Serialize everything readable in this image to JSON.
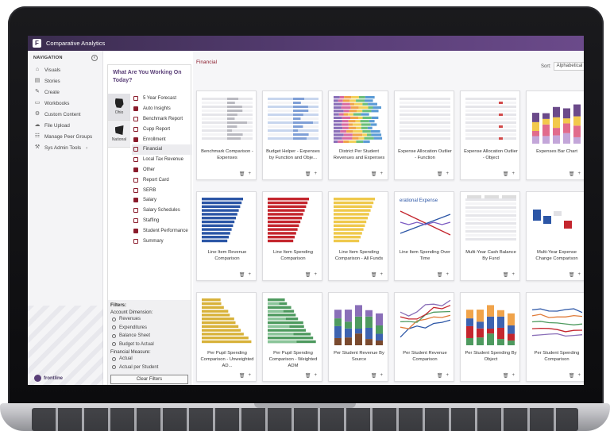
{
  "app": {
    "title": "Comparative Analytics",
    "logo_glyph": "F"
  },
  "sidebar": {
    "heading": "NAVIGATION",
    "items": [
      {
        "label": "Visuals",
        "icon": "house-icon"
      },
      {
        "label": "Stories",
        "icon": "book-icon"
      },
      {
        "label": "Create",
        "icon": "pencil-icon"
      },
      {
        "label": "Workbooks",
        "icon": "folder-icon"
      },
      {
        "label": "Custom Content",
        "icon": "gear-icon"
      },
      {
        "label": "File Upload",
        "icon": "cloud-upload-icon"
      },
      {
        "label": "Manage Peer Groups",
        "icon": "group-icon"
      },
      {
        "label": "Sys Admin Tools",
        "icon": "wrench-icon",
        "expandable": true
      }
    ],
    "brand": "frontline"
  },
  "panel": {
    "title": "What Are You Working On Today?",
    "states": [
      {
        "label": "Ohio"
      },
      {
        "label": "National"
      }
    ],
    "categories": [
      "5 Year Forecast",
      "Auto Insights",
      "Benchmark Report",
      "Cupp Report",
      "Enrollment",
      "Financial",
      "Local Tax Revenue",
      "Other",
      "Report Card",
      "SERB",
      "Salary",
      "Salary Schedules",
      "Staffing",
      "Student Performance",
      "Summary"
    ],
    "selected_category": "Financial",
    "filters": {
      "heading": "Filters:",
      "account_dimension_label": "Account Dimension:",
      "account_dimension_options": [
        "Revenues",
        "Expenditures",
        "Balance Sheet",
        "Budget to Actual"
      ],
      "financial_measure_label": "Financial Measure:",
      "financial_measure_options": [
        "Actual",
        "Actual per Student"
      ],
      "clear_label": "Clear Filters"
    }
  },
  "main": {
    "breadcrumb": "Financial",
    "sort_label": "Sort:",
    "sort_value": "Alphabetical",
    "cards": [
      {
        "caption": "Benchmark Comparison - Expenses",
        "thumb": "table-gray"
      },
      {
        "caption": "Budget Helper - Expenses by Function and Obje...",
        "thumb": "table-blue"
      },
      {
        "caption": "District Per Student Revenues and Expenses",
        "thumb": "stacked-hbar"
      },
      {
        "caption": "Expense Allocation Outlier - Function",
        "thumb": "table-plain"
      },
      {
        "caption": "Expense Allocation Outlier - Object",
        "thumb": "table-plain-red"
      },
      {
        "caption": "Expenses Bar Chart",
        "thumb": "stacked-vbar"
      },
      {
        "caption": "Line Item Revenue Comparison",
        "thumb": "hbar-blue"
      },
      {
        "caption": "Line Item Spending Comparison",
        "thumb": "hbar-red"
      },
      {
        "caption": "Line Item Spending Comparison - All Funds",
        "thumb": "hbar-yellow"
      },
      {
        "caption": "Line Item Spending Over Time",
        "thumb": "lines-cross",
        "title": "erational Expense"
      },
      {
        "caption": "Multi-Year Cash Balance By Fund",
        "thumb": "table-three"
      },
      {
        "caption": "Multi-Year Expense Change Comparison",
        "thumb": "waterfall"
      },
      {
        "caption": "Per Pupil Spending Comparison - Unweighted AD...",
        "thumb": "hbar-gold"
      },
      {
        "caption": "Per Pupil Spending Comparison - Weighted ADM",
        "thumb": "hbar-green"
      },
      {
        "caption": "Per Student Revenue By Source",
        "thumb": "stacked-vbar-2"
      },
      {
        "caption": "Per Student Revenue Comparison",
        "thumb": "lines-multi"
      },
      {
        "caption": "Per Student Spending By Object",
        "thumb": "stacked-vbar-3"
      },
      {
        "caption": "Per Student Spending Comparison",
        "thumb": "lines-flat"
      }
    ],
    "card_actions": {
      "delete_icon": "trash-icon",
      "add_glyph": "+"
    }
  }
}
